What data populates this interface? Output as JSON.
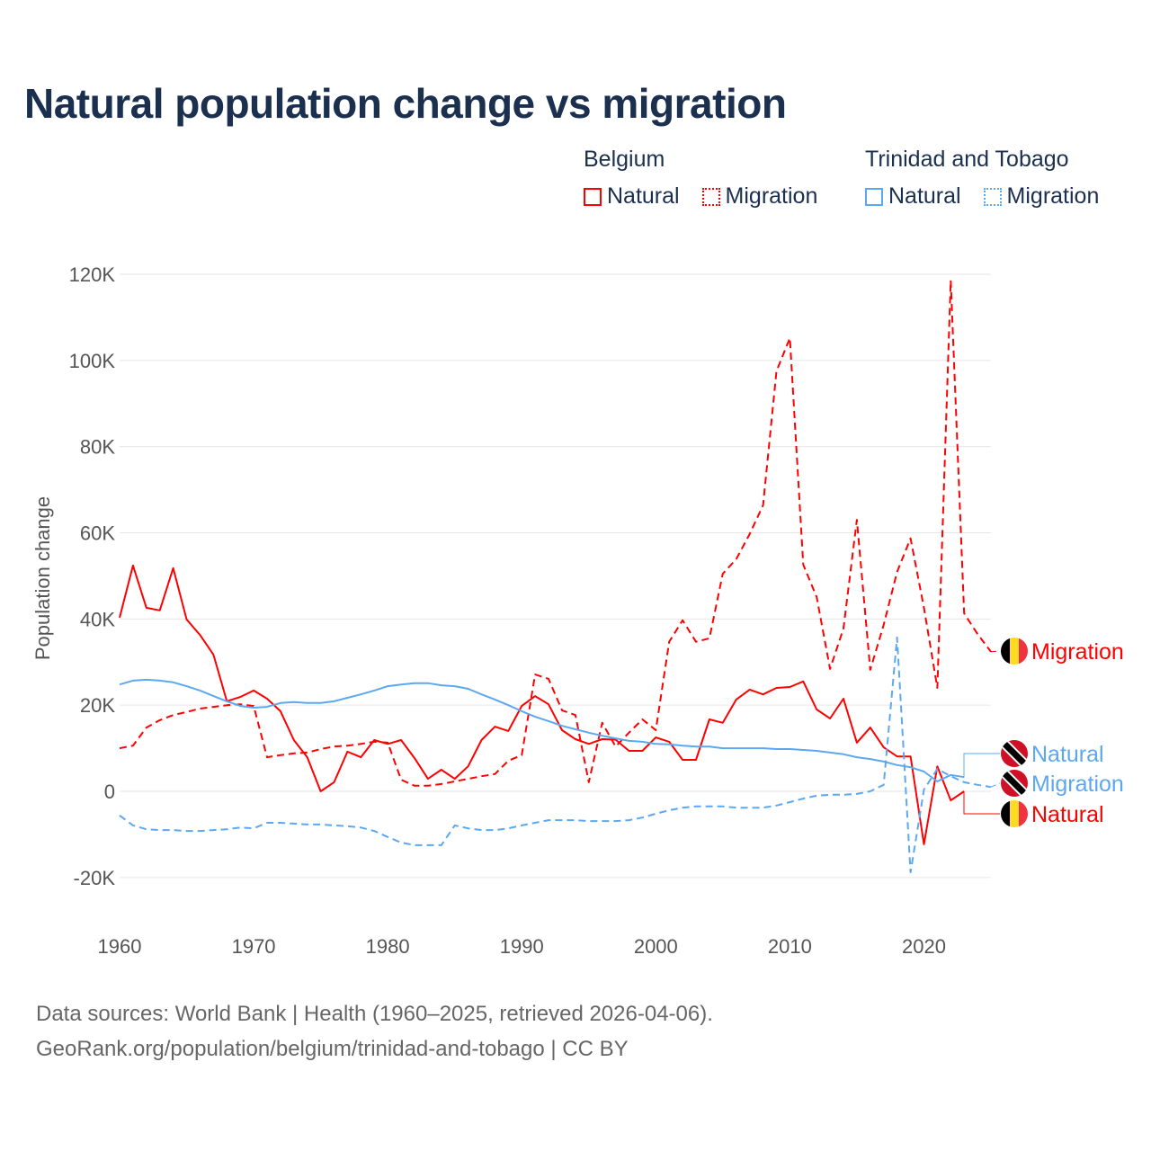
{
  "chart_data": {
    "type": "line",
    "title": "Natural population change vs migration",
    "xlabel": "",
    "ylabel": "Population change",
    "xlim": [
      1960,
      2025
    ],
    "ylim": [
      -20000,
      120000
    ],
    "x_ticks": [
      "1960",
      "1970",
      "1980",
      "1990",
      "2000",
      "2010",
      "2020"
    ],
    "y_ticks": [
      {
        "v": -20000,
        "label": "-20K"
      },
      {
        "v": 0,
        "label": "0"
      },
      {
        "v": 20000,
        "label": "20K"
      },
      {
        "v": 40000,
        "label": "40K"
      },
      {
        "v": 60000,
        "label": "60K"
      },
      {
        "v": 80000,
        "label": "80K"
      },
      {
        "v": 100000,
        "label": "100K"
      },
      {
        "v": 120000,
        "label": "120K"
      }
    ],
    "grid": true,
    "legend": {
      "placement": "top-right",
      "groups": [
        {
          "title": "Belgium",
          "items": [
            "Natural",
            "Migration"
          ]
        },
        {
          "title": "Trinidad and Tobago",
          "items": [
            "Natural",
            "Migration"
          ]
        }
      ]
    },
    "series": [
      {
        "name": "Belgium Natural",
        "country": "Belgium",
        "kind": "Natural",
        "label": "Natural",
        "color": "#ff0000",
        "dashed": false,
        "start_year": 1960,
        "values": [
          40300,
          52400,
          42600,
          42000,
          51800,
          39900,
          36300,
          31700,
          20900,
          21900,
          23400,
          21500,
          18600,
          11900,
          7900,
          0,
          2100,
          9200,
          7900,
          11900,
          11000,
          11900,
          7700,
          2900,
          5000,
          2900,
          5800,
          11900,
          15000,
          14000,
          19800,
          22100,
          20200,
          14200,
          12100,
          11000,
          12100,
          12000,
          9400,
          9400,
          12500,
          11500,
          7300,
          7300,
          16700,
          15900,
          21300,
          23600,
          22500,
          24000,
          24200,
          25500,
          19000,
          16900,
          21500,
          11300,
          14800,
          10200,
          8100,
          8100,
          -12300,
          5800,
          -2100,
          0
        ]
      },
      {
        "name": "Belgium Migration",
        "country": "Belgium",
        "kind": "Migration",
        "label": "Migration",
        "color": "#ff0000",
        "dashed": true,
        "start_year": 1960,
        "values": [
          10000,
          10600,
          14800,
          16500,
          17700,
          18400,
          19200,
          19600,
          20000,
          20200,
          19800,
          7900,
          8400,
          8800,
          9000,
          9800,
          10400,
          10600,
          11000,
          11500,
          11300,
          2700,
          1300,
          1300,
          1700,
          2300,
          2900,
          3500,
          4000,
          7100,
          8400,
          27100,
          26100,
          18800,
          17700,
          2100,
          15900,
          10400,
          13600,
          16700,
          14200,
          34700,
          39700,
          34700,
          35500,
          50500,
          53900,
          59700,
          66400,
          97500,
          105200,
          52600,
          45100,
          28400,
          37800,
          63000,
          28200,
          38600,
          50900,
          58700,
          42600,
          24000,
          118600,
          41300,
          36500,
          32400
        ]
      },
      {
        "name": "Trinidad and Tobago Natural",
        "country": "Trinidad and Tobago",
        "kind": "Natural",
        "label": "Natural",
        "color": "#5ca8f0",
        "dashed": false,
        "start_year": 1960,
        "values": [
          24800,
          25700,
          25900,
          25700,
          25300,
          24400,
          23400,
          22100,
          20900,
          19800,
          19400,
          19600,
          20500,
          20700,
          20500,
          20500,
          20900,
          21700,
          22500,
          23400,
          24400,
          24800,
          25100,
          25100,
          24600,
          24400,
          23800,
          22500,
          21300,
          20000,
          18600,
          17300,
          16300,
          15200,
          14400,
          13600,
          12900,
          12300,
          11700,
          11500,
          11000,
          10900,
          10600,
          10400,
          10400,
          10000,
          10000,
          10000,
          10000,
          9800,
          9800,
          9600,
          9400,
          9000,
          8600,
          7900,
          7500,
          6900,
          6100,
          5600,
          4600,
          2300,
          3800,
          3300
        ]
      },
      {
        "name": "Trinidad and Tobago Migration",
        "country": "Trinidad and Tobago",
        "kind": "Migration",
        "label": "Migration",
        "color": "#5ca8f0",
        "dashed": true,
        "start_year": 1960,
        "values": [
          -5600,
          -7900,
          -8800,
          -9000,
          -9000,
          -9200,
          -9200,
          -9000,
          -8800,
          -8400,
          -8600,
          -7300,
          -7300,
          -7500,
          -7700,
          -7700,
          -7900,
          -8100,
          -8400,
          -9200,
          -10600,
          -11900,
          -12500,
          -12500,
          -12500,
          -7900,
          -8600,
          -9000,
          -9000,
          -8600,
          -7900,
          -7300,
          -6700,
          -6700,
          -6700,
          -6900,
          -6900,
          -6900,
          -6700,
          -6100,
          -5200,
          -4400,
          -3800,
          -3500,
          -3500,
          -3500,
          -3800,
          -3800,
          -3800,
          -3300,
          -2500,
          -1700,
          -1000,
          -800,
          -800,
          -600,
          0,
          1500,
          35700,
          -18800,
          400,
          5200,
          3500,
          2100,
          1500,
          1000
        ]
      }
    ],
    "source_line1": "Data sources: World Bank | Health (1960–2025, retrieved 2026-04-06).",
    "source_line2": "GeoRank.org/population/belgium/trinidad-and-tobago | CC BY"
  }
}
